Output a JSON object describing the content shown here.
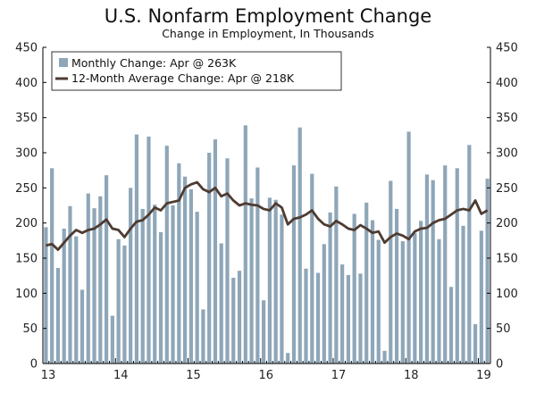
{
  "chart_data": {
    "type": "bar",
    "title": "U.S. Nonfarm Employment Change",
    "subtitle": "Change in Employment, In Thousands",
    "ylim": [
      0,
      450
    ],
    "yticks": [
      0,
      50,
      100,
      150,
      200,
      250,
      300,
      350,
      400,
      450
    ],
    "ytick_labels": [
      "0",
      "50",
      "100",
      "150",
      "200",
      "250",
      "300",
      "350",
      "400",
      "450"
    ],
    "xtick_labels": [
      "13",
      "14",
      "15",
      "16",
      "17",
      "18",
      "19"
    ],
    "legend_position": "top-left",
    "grid": false,
    "colors": {
      "bar": "#8ea6b8",
      "line": "#4e3b31",
      "axis": "#000000"
    },
    "series": [
      {
        "name": "Monthly Change: Apr @ 263K",
        "kind": "bar",
        "values": [
          194,
          278,
          136,
          192,
          224,
          181,
          105,
          242,
          221,
          238,
          268,
          68,
          177,
          168,
          250,
          326,
          220,
          323,
          226,
          187,
          310,
          225,
          285,
          266,
          248,
          216,
          77,
          300,
          319,
          171,
          292,
          122,
          132,
          339,
          235,
          279,
          90,
          236,
          233,
          212,
          15,
          282,
          336,
          135,
          270,
          129,
          170,
          215,
          252,
          141,
          126,
          213,
          128,
          229,
          204,
          176,
          18,
          260,
          220,
          174,
          330,
          186,
          203,
          269,
          261,
          177,
          282,
          109,
          278,
          196,
          311,
          56,
          189,
          263
        ]
      },
      {
        "name": "12-Month Average Change: Apr @ 218K",
        "kind": "line",
        "values": [
          168,
          170,
          162,
          172,
          182,
          190,
          186,
          190,
          192,
          198,
          205,
          192,
          190,
          180,
          192,
          202,
          204,
          212,
          222,
          218,
          228,
          230,
          232,
          250,
          255,
          258,
          248,
          244,
          250,
          238,
          242,
          232,
          225,
          228,
          226,
          225,
          220,
          218,
          228,
          222,
          198,
          206,
          208,
          212,
          218,
          206,
          198,
          195,
          203,
          198,
          192,
          190,
          197,
          192,
          186,
          188,
          172,
          180,
          185,
          182,
          177,
          188,
          192,
          193,
          200,
          204,
          206,
          212,
          218,
          220,
          218,
          232,
          213,
          218
        ]
      }
    ]
  }
}
